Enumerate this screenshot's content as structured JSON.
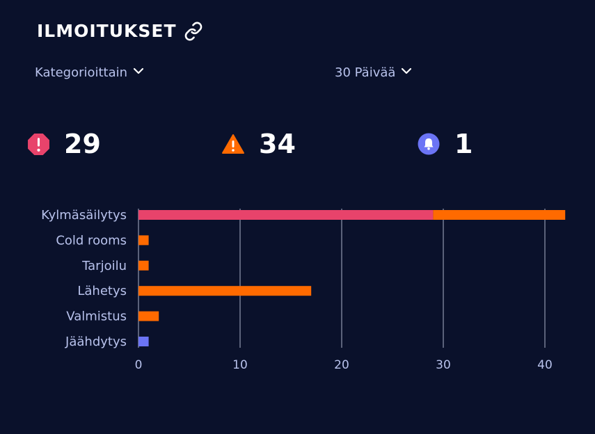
{
  "header": {
    "title": "ILMOITUKSET",
    "link_icon": "link-icon"
  },
  "filters": {
    "category_label": "Kategorioittain",
    "period_label": "30 Päivää"
  },
  "stats": {
    "alarms": {
      "icon": "alarm-octagon-icon",
      "count": "29",
      "color": "#e8436b"
    },
    "warnings": {
      "icon": "warning-triangle-icon",
      "count": "34",
      "color": "#ff6a00"
    },
    "notices": {
      "icon": "bell-icon",
      "count": "1",
      "color": "#6b74f5"
    }
  },
  "colors": {
    "background": "#0a112b",
    "alarm": "#e8436b",
    "warning": "#ff6a00",
    "notice": "#6b74f5",
    "label": "#b8c2ec"
  },
  "chart_data": {
    "type": "bar",
    "orientation": "horizontal",
    "stacked": true,
    "categories": [
      "Kylmäsäilytys",
      "Cold rooms",
      "Tarjoilu",
      "Lähetys",
      "Valmistus",
      "Jäähdytys"
    ],
    "series": [
      {
        "color": "#e8436b",
        "values": [
          29,
          0,
          0,
          0,
          0,
          0
        ]
      },
      {
        "color": "#ff6a00",
        "values": [
          13,
          1,
          1,
          17,
          2,
          0
        ]
      },
      {
        "color": "#6b74f5",
        "values": [
          0,
          0,
          0,
          0,
          0,
          1
        ]
      }
    ],
    "xlim": [
      0,
      42
    ],
    "xticks": [
      "0",
      "10",
      "20",
      "30",
      "40"
    ],
    "grid": "vertical"
  }
}
